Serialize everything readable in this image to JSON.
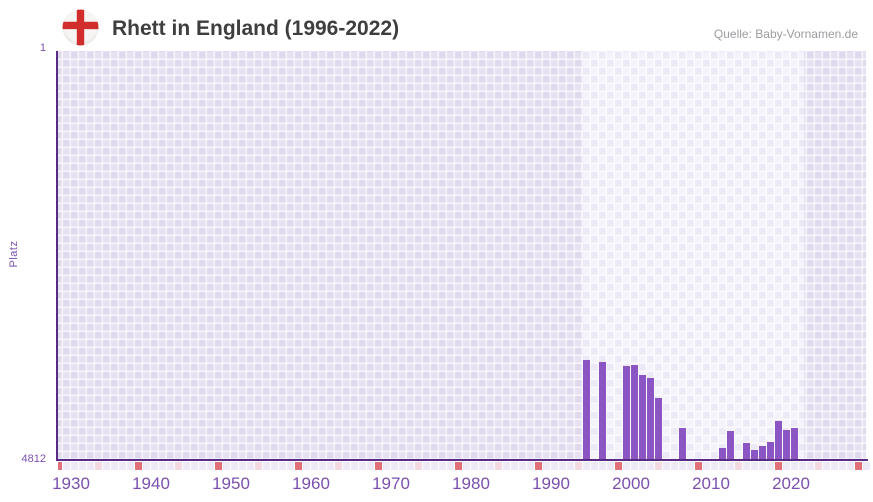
{
  "header": {
    "title": "Rhett in England (1996-2022)",
    "source": "Quelle: Baby-Vornamen.de",
    "flag_icon": "england-flag"
  },
  "axes": {
    "y": {
      "title": "Platz",
      "top_tick": "1",
      "bottom_tick": "4812"
    },
    "x": {
      "tick_years": [
        1930,
        1940,
        1950,
        1960,
        1970,
        1980,
        1990,
        2000,
        2010,
        2020
      ]
    }
  },
  "chart_data": {
    "type": "bar",
    "title": "Rhett in England (1996-2022)",
    "xlabel": "",
    "ylabel": "Platz",
    "y_axis": {
      "inverted": true,
      "min": 1,
      "max": 4812
    },
    "x_axis": {
      "range": [
        1930,
        2031
      ],
      "data_window": [
        1996,
        2022
      ],
      "grid": true
    },
    "series": [
      {
        "name": "Platz von Rhett in England",
        "points": [
          {
            "year": 1996,
            "rank": 3630
          },
          {
            "year": 1998,
            "rank": 3660
          },
          {
            "year": 2001,
            "rank": 3710
          },
          {
            "year": 2002,
            "rank": 3690
          },
          {
            "year": 2003,
            "rank": 3815
          },
          {
            "year": 2004,
            "rank": 3845
          },
          {
            "year": 2005,
            "rank": 4080
          },
          {
            "year": 2008,
            "rank": 4440
          },
          {
            "year": 2013,
            "rank": 4670
          },
          {
            "year": 2014,
            "rank": 4465
          },
          {
            "year": 2016,
            "rank": 4610
          },
          {
            "year": 2017,
            "rank": 4695
          },
          {
            "year": 2018,
            "rank": 4645
          },
          {
            "year": 2019,
            "rank": 4600
          },
          {
            "year": 2020,
            "rank": 4350
          },
          {
            "year": 2021,
            "rank": 4455
          },
          {
            "year": 2022,
            "rank": 4435
          }
        ]
      }
    ],
    "years_without_rank": [
      1997,
      1999,
      2000,
      2006,
      2007,
      2009,
      2010,
      2011,
      2012,
      2015
    ],
    "decade_marker_interval": 10,
    "half_decade_marker_interval": 5,
    "legend": "none"
  },
  "colors": {
    "bar": "#8c55c4",
    "axis_line": "#5a2a87",
    "tick_text": "#7b50ae",
    "title_text": "#3e3e3e",
    "source_text": "#9c9ca0",
    "decade_marker": "#e0707a",
    "half_decade_marker": "#f3d9e2",
    "marker_default": "#edeaf6",
    "flag_cross": "#d22d2d",
    "flag_field": "#f6f5f3"
  }
}
